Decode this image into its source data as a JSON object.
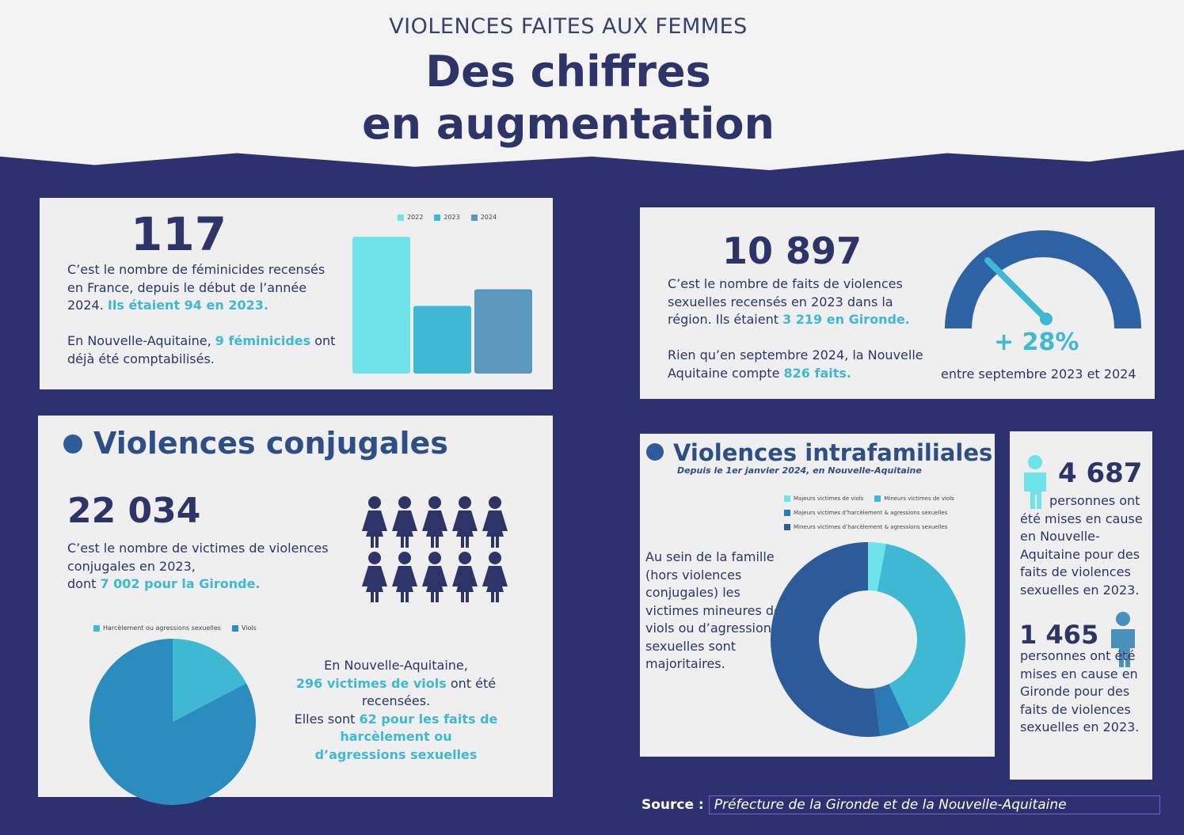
{
  "header": {
    "kicker": "VIOLENCES FAITES AUX FEMMES",
    "title_line1": "Des chiffres",
    "title_line2": "en augmentation"
  },
  "feminicides": {
    "number": "117",
    "text1": "C’est le nombre de féminicides recensés en France, depuis le début de l’année 2024. ",
    "text1_hl": "Ils étaient 94 en 2023.",
    "text2": "En Nouvelle-Aquitaine, ",
    "text2_hl": "9 féminicides",
    "text2_end": " ont déjà été comptabilisés."
  },
  "violences_sexuelles": {
    "number": "10 897",
    "text1": "C’est le nombre de faits de violences sexuelles recensés en 2023 dans la région. Ils étaient ",
    "text1_hl": "3 219 en Gironde.",
    "text2": "Rien qu’en septembre 2024, la Nouvelle Aquitaine compte ",
    "text2_hl": "826 faits.",
    "gauge_value": "+ 28%",
    "gauge_label": "entre septembre 2023 et 2024",
    "gauge_fraction": 0.28
  },
  "conjugales": {
    "heading": "Violences conjugales",
    "number": "22 034",
    "text1": "C’est le nombre de victimes de violences conjugales en 2023,",
    "text1b": "dont ",
    "text1_hl": "7 002 pour la Gironde.",
    "text2a": "En Nouvelle-Aquitaine,",
    "text2_hl1": "296 victimes de viols",
    "text2b": " ont été recensées.",
    "text2c": "Elles sont ",
    "text2_hl2": "62 pour les faits de harcèlement ou d’agressions sexuelles"
  },
  "intrafamiliales": {
    "heading": "Violences intrafamiliales",
    "subtitle": "Depuis le 1er janvier 2024, en Nouvelle-Aquitaine",
    "text": "Au sein de la famille (hors violences conjugales) les victimes mineures de viols ou d’agressions sexuelles sont majoritaires."
  },
  "mis_en_cause": {
    "n1": "4 687",
    "t1": "personnes ont été mises en cause en Nouvelle-Aquitaine pour des faits de violences sexuelles en 2023.",
    "n2": "1 465",
    "t2": "personnes ont été mises en cause en Gironde pour des faits de violences sexuelles en 2023."
  },
  "source": {
    "label": "Source :",
    "value": "Préfecture de la Gironde et de la Nouvelle-Aquitaine"
  },
  "chart_data": [
    {
      "type": "bar",
      "title": "Féminicides",
      "categories": [
        "2022",
        "2023",
        "2024"
      ],
      "values": [
        190,
        94,
        117
      ],
      "colors": [
        "#6ee3ea",
        "#3fb8d4",
        "#5a96bd"
      ],
      "ylim": [
        0,
        200
      ]
    },
    {
      "type": "pie",
      "legend": [
        "Harcèlement ou agressions sexuelles",
        "Viols"
      ],
      "values": [
        62,
        296
      ],
      "colors": [
        "#3fb8d4",
        "#2b8cc0"
      ],
      "legend_position": "top"
    },
    {
      "type": "pie",
      "subtype": "donut",
      "legend": [
        "Majeurs victimes de viols",
        "Mineurs victimes de viols",
        "Majeurs victimes d’harcèlement & agressions sexuelles",
        "Mineurs victimes d’harcèlement & agressions sexuelles"
      ],
      "values": [
        3,
        40,
        5,
        52
      ],
      "colors": [
        "#6ee3ea",
        "#3fb8d4",
        "#2b7ab5",
        "#2d5b9a"
      ],
      "legend_position": "top"
    }
  ]
}
